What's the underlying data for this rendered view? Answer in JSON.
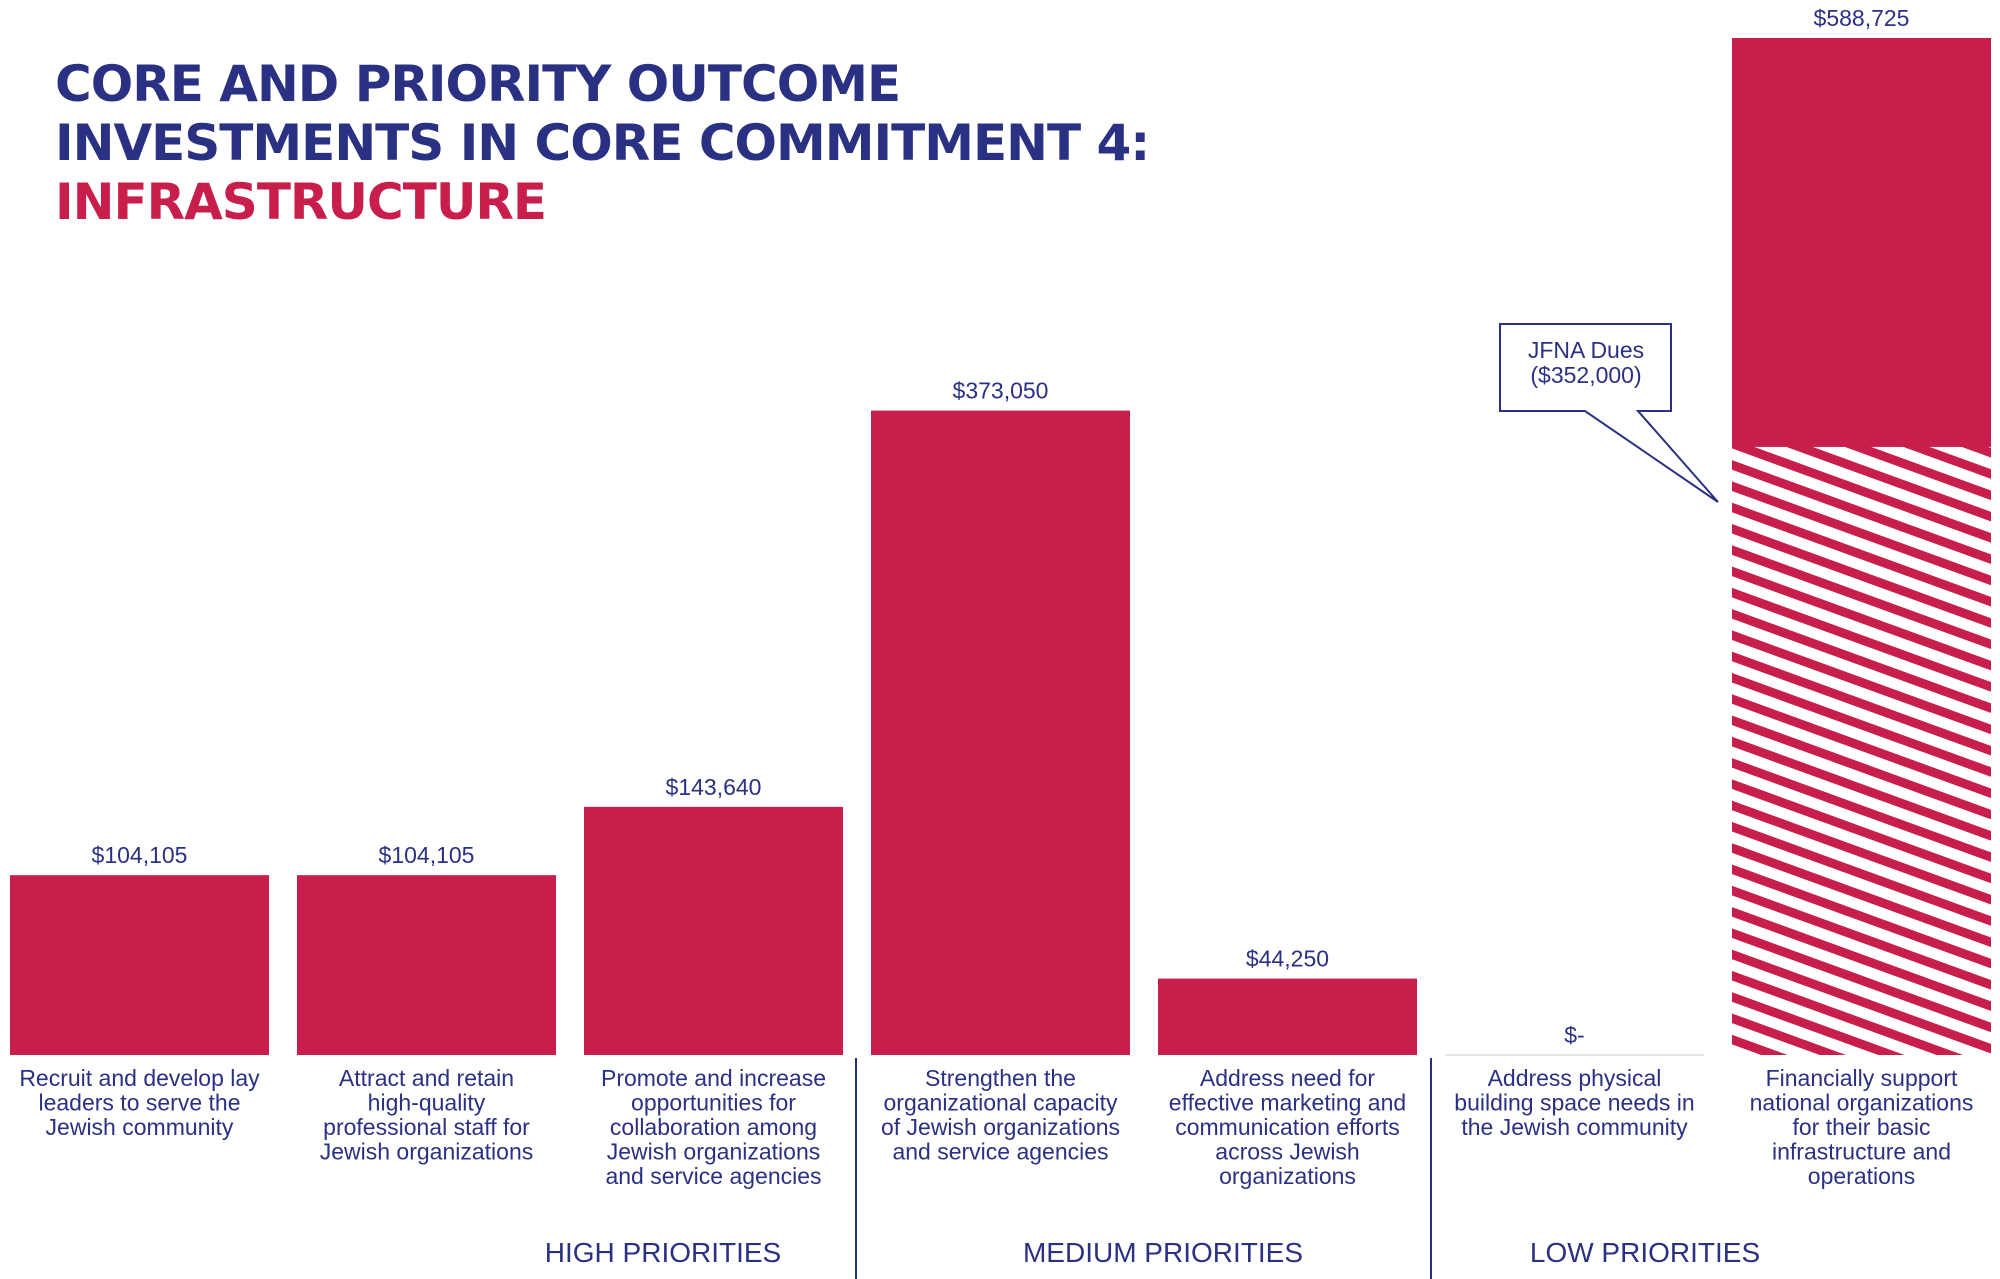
{
  "title": {
    "line1": "CORE AND PRIORITY OUTCOME",
    "line2": "INVESTMENTS IN CORE COMMITMENT 4:",
    "line3": "INFRASTRUCTURE"
  },
  "colors": {
    "navy": "#2b3182",
    "crimson": "#c81e4b",
    "white": "#ffffff"
  },
  "chart_data": {
    "type": "bar",
    "categories": [
      [
        "Recruit and develop lay",
        "leaders to serve the",
        "Jewish community"
      ],
      [
        "Attract and retain",
        "high-quality",
        "professional staff for",
        "Jewish organizations"
      ],
      [
        "Promote and increase",
        "opportunities for",
        "collaboration among",
        "Jewish organizations",
        "and service agencies"
      ],
      [
        "Strengthen the",
        "organizational capacity",
        "of Jewish organizations",
        "and service agencies"
      ],
      [
        "Address need for",
        "effective marketing and",
        "communication efforts",
        "across Jewish",
        "organizations"
      ],
      [
        "Address physical",
        "building space needs in",
        "the Jewish community"
      ],
      [
        "Financially support",
        "national organizations",
        "for their basic",
        "infrastructure and",
        "operations"
      ]
    ],
    "values": [
      104105,
      104105,
      143640,
      373050,
      44250,
      0,
      588725
    ],
    "value_labels": [
      "$104,105",
      "$104,105",
      "$143,640",
      "$373,050",
      "$44,250",
      "$-",
      "$588,725"
    ],
    "ylim": [
      0,
      588725
    ],
    "groups": [
      {
        "label": "HIGH PRIORITIES",
        "bars": [
          0,
          1,
          2
        ]
      },
      {
        "label": "MEDIUM PRIORITIES",
        "bars": [
          3,
          4
        ]
      },
      {
        "label": "LOW PRIORITIES",
        "bars": [
          5,
          6
        ]
      }
    ],
    "hatched_portion": {
      "bar": 6,
      "value": 352000
    },
    "callout": {
      "line1": "JFNA Dues",
      "line2": "($352,000)"
    },
    "grid": false
  }
}
